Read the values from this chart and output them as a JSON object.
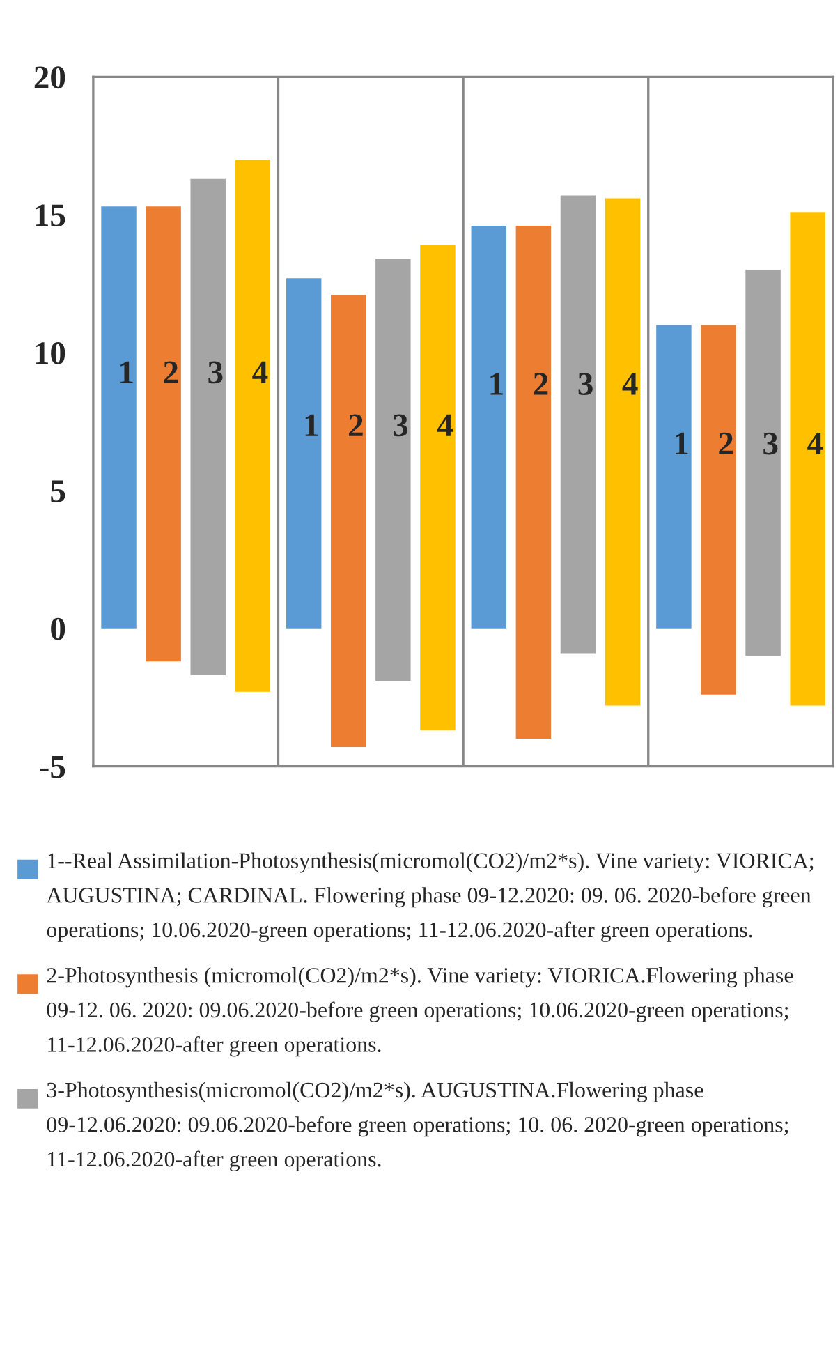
{
  "chart_data": {
    "type": "bar",
    "categories": [
      null,
      null,
      null,
      null
    ],
    "ylim": [
      -5,
      20
    ],
    "yticks": [
      -5,
      0,
      5,
      10,
      15,
      20
    ],
    "grid": "x",
    "legend": "bottom",
    "series": [
      {
        "name": "1--Real Assimilation-Photosynthesis(micromol(CO2)/m2*s). Vine variety: VIORICA; AUGUSTINA; CARDINAL. Flowering phase 09-12.2020: 09. 06. 2020-before green operations; 10.06.2020-green operations; 11-12.06.2020-after green operations.",
        "color": "#5b9bd5",
        "base": [
          0,
          0,
          0,
          0
        ],
        "values": [
          15.3,
          12.7,
          14.6,
          11.0
        ]
      },
      {
        "name": "2-Photosynthesis (micromol(CO2)/m2*s). Vine variety: VIORICA.Flowering phase 09-12. 06. 2020: 09.06.2020-before green operations; 10.06.2020-green operations; 11-12.06.2020-after green operations.",
        "color": "#ed7d31",
        "base": [
          -1.2,
          -4.3,
          -4.0,
          -2.4
        ],
        "values": [
          16.5,
          16.4,
          18.6,
          13.4
        ]
      },
      {
        "name": "3-Photosynthesis(micromol(CO2)/m2*s). AUGUSTINA.Flowering phase 09-12.06.2020: 09.06.2020-before green operations; 10. 06. 2020-green operations;  11-12.06.2020-after green operations.",
        "color": "#a5a5a5",
        "base": [
          -1.7,
          -1.9,
          -0.9,
          -1.0
        ],
        "values": [
          18.0,
          15.3,
          16.6,
          14.0
        ]
      },
      {
        "color": "#ffc000",
        "base": [
          -2.3,
          -3.7,
          -2.8,
          -2.8
        ],
        "values": [
          19.3,
          17.6,
          18.4,
          17.9
        ]
      }
    ],
    "annotations": [
      "1",
      "2",
      "3",
      "4",
      "1",
      "2",
      "3",
      "4",
      "1",
      "2",
      "3",
      "4",
      "1",
      "2",
      "3",
      "4"
    ]
  }
}
